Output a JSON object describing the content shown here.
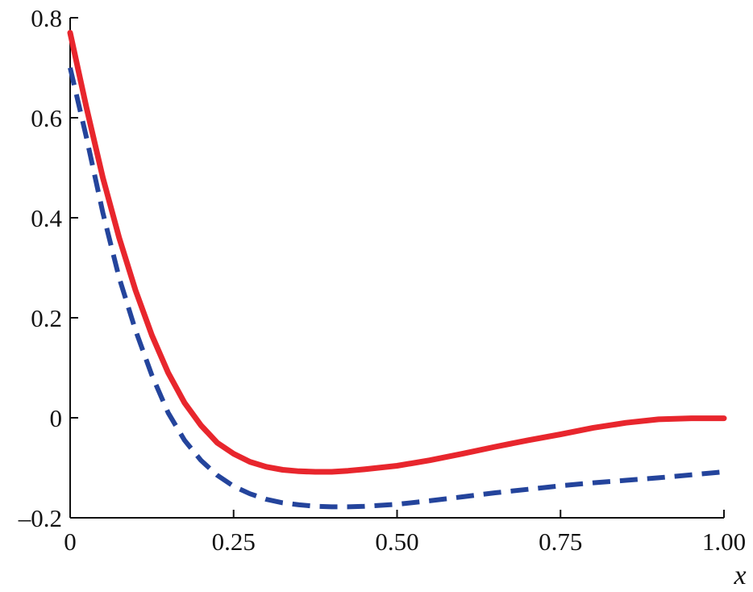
{
  "chart_data": {
    "type": "line",
    "title": "",
    "xlabel": "x",
    "ylabel": "",
    "xlim": [
      0,
      1.0
    ],
    "ylim": [
      -0.2,
      0.8
    ],
    "grid": false,
    "x_ticks": [
      0,
      0.25,
      0.5,
      0.75,
      1.0
    ],
    "x_tick_labels": [
      "0",
      "0.25",
      "0.50",
      "0.75",
      "1.00"
    ],
    "y_ticks": [
      -0.2,
      0,
      0.2,
      0.4,
      0.6,
      0.8
    ],
    "y_tick_labels": [
      "–0.2",
      "0",
      "0.2",
      "0.4",
      "0.6",
      "0.8"
    ],
    "series": [
      {
        "style": "solid",
        "color": "#e8262d",
        "x": [
          0,
          0.025,
          0.05,
          0.075,
          0.1,
          0.125,
          0.15,
          0.175,
          0.2,
          0.225,
          0.25,
          0.275,
          0.3,
          0.325,
          0.35,
          0.375,
          0.4,
          0.425,
          0.45,
          0.5,
          0.55,
          0.6,
          0.65,
          0.7,
          0.75,
          0.8,
          0.85,
          0.9,
          0.95,
          1.0
        ],
        "y": [
          0.77,
          0.62,
          0.48,
          0.36,
          0.255,
          0.165,
          0.09,
          0.03,
          -0.015,
          -0.05,
          -0.072,
          -0.088,
          -0.098,
          -0.104,
          -0.107,
          -0.108,
          -0.108,
          -0.106,
          -0.103,
          -0.096,
          -0.085,
          -0.072,
          -0.058,
          -0.045,
          -0.033,
          -0.02,
          -0.01,
          -0.003,
          -0.001,
          -0.001
        ]
      },
      {
        "style": "dashed",
        "color": "#24449c",
        "x": [
          0,
          0.025,
          0.05,
          0.075,
          0.1,
          0.125,
          0.15,
          0.175,
          0.2,
          0.225,
          0.25,
          0.275,
          0.3,
          0.325,
          0.35,
          0.375,
          0.4,
          0.425,
          0.45,
          0.5,
          0.55,
          0.6,
          0.65,
          0.7,
          0.75,
          0.8,
          0.85,
          0.9,
          0.95,
          1.0
        ],
        "y": [
          0.7,
          0.56,
          0.41,
          0.28,
          0.175,
          0.085,
          0.01,
          -0.045,
          -0.085,
          -0.115,
          -0.137,
          -0.152,
          -0.163,
          -0.17,
          -0.174,
          -0.177,
          -0.178,
          -0.178,
          -0.177,
          -0.173,
          -0.166,
          -0.158,
          -0.15,
          -0.143,
          -0.136,
          -0.13,
          -0.125,
          -0.12,
          -0.114,
          -0.108
        ]
      }
    ]
  }
}
